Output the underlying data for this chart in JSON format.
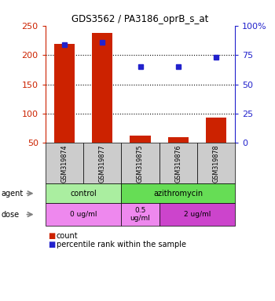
{
  "title": "GDS3562 / PA3186_oprB_s_at",
  "samples": [
    "GSM319874",
    "GSM319877",
    "GSM319875",
    "GSM319876",
    "GSM319878"
  ],
  "bar_values": [
    219,
    237,
    63,
    60,
    93
  ],
  "percentile_values": [
    84,
    86,
    65,
    65,
    73
  ],
  "bar_color": "#cc2200",
  "dot_color": "#2222cc",
  "left_ylim": [
    50,
    250
  ],
  "left_yticks": [
    50,
    100,
    150,
    200,
    250
  ],
  "right_ylim": [
    0,
    100
  ],
  "right_yticks": [
    0,
    25,
    50,
    75,
    100
  ],
  "right_yticklabels": [
    "0",
    "25",
    "50",
    "75",
    "100%"
  ],
  "agent_groups": [
    {
      "label": "control",
      "span": [
        0,
        2
      ],
      "color": "#aaeea0"
    },
    {
      "label": "azithromycin",
      "span": [
        2,
        5
      ],
      "color": "#66dd55"
    }
  ],
  "dose_groups": [
    {
      "label": "0 ug/ml",
      "span": [
        0,
        2
      ],
      "color": "#ee88ee"
    },
    {
      "label": "0.5\nug/ml",
      "span": [
        2,
        3
      ],
      "color": "#ee88ee"
    },
    {
      "label": "2 ug/ml",
      "span": [
        3,
        5
      ],
      "color": "#cc44cc"
    }
  ],
  "legend_count_color": "#cc2200",
  "legend_dot_color": "#2222cc",
  "bg_color": "#ffffff",
  "tick_label_color_left": "#cc2200",
  "tick_label_color_right": "#2222cc",
  "grid_color": "#000000",
  "sample_cell_color": "#cccccc",
  "grid_ticks": [
    100,
    150,
    200
  ]
}
